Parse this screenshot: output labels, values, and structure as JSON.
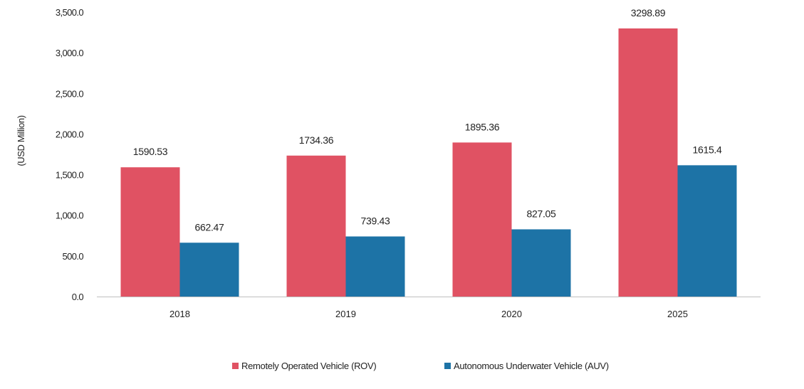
{
  "chart_data": {
    "type": "bar",
    "title": "",
    "xlabel": "",
    "ylabel": "(USD Million)",
    "categories": [
      "2018",
      "2019",
      "2020",
      "2025"
    ],
    "series": [
      {
        "name": "Remotely Operated Vehicle (ROV)",
        "values": [
          1590.53,
          1734.36,
          1895.36,
          3298.89
        ],
        "labels": [
          "1590.53",
          "1734.36",
          "1895.36",
          "3298.89"
        ],
        "color": "#e05263"
      },
      {
        "name": "Autonomous Underwater Vehicle (AUV)",
        "values": [
          662.47,
          739.43,
          827.05,
          1615.4
        ],
        "labels": [
          "662.47",
          "739.43",
          "827.05",
          "1615.4"
        ],
        "color": "#1d73a6"
      }
    ],
    "ylim": [
      0,
      3500
    ],
    "yticks": [
      0,
      500,
      1000,
      1500,
      2000,
      2500,
      3000,
      3500
    ],
    "ytick_labels": [
      "0.0",
      "500.0",
      "1,000.0",
      "1,500.0",
      "2,000.0",
      "2,500.0",
      "3,000.0",
      "3,500.0"
    ],
    "grid": false,
    "legend_position": "bottom"
  }
}
